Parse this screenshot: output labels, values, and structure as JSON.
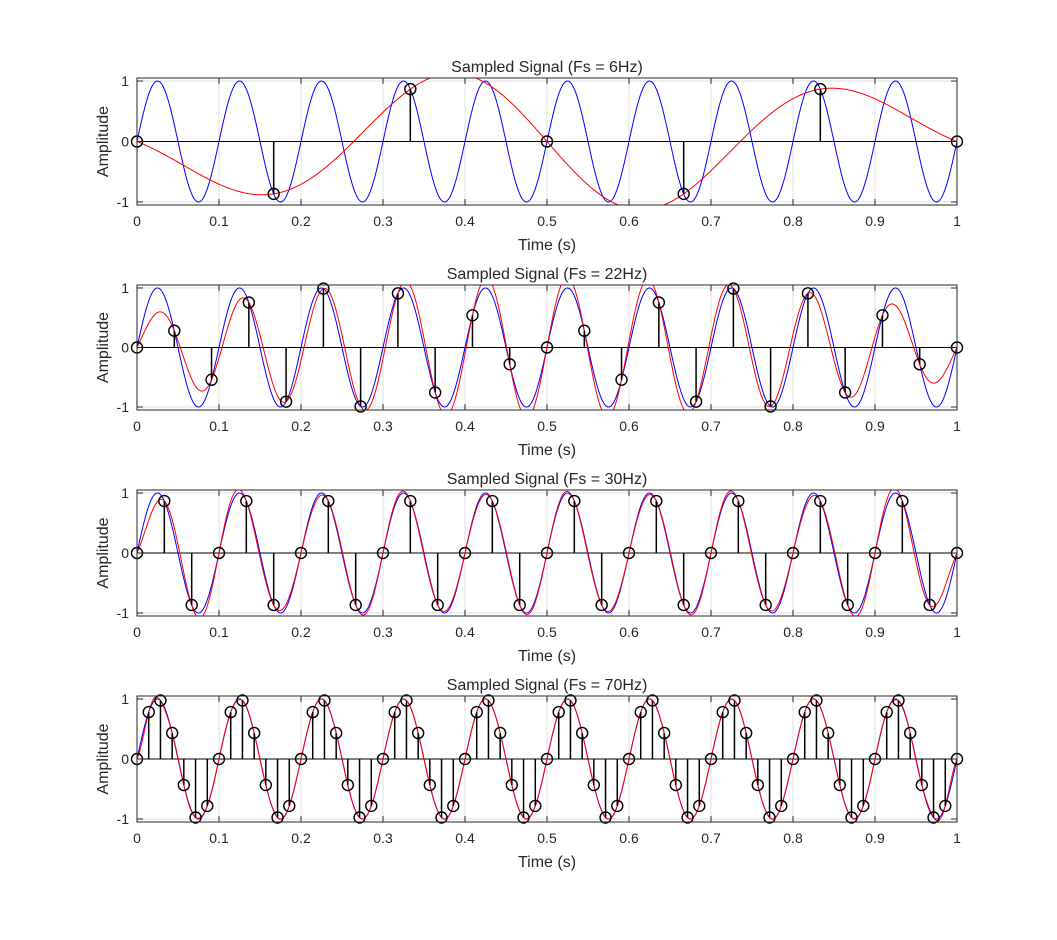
{
  "figure": {
    "colors": {
      "continuous": "#0000ff",
      "reconstructed": "#ff0000",
      "samples": "#000000",
      "grid": "#dfdfdf",
      "axes": "#262626"
    }
  },
  "chart_data": [
    {
      "type": "line",
      "title": "Sampled Signal (Fs = 6Hz)",
      "xlabel": "Time (s)",
      "ylabel": "Amplitude",
      "xlim": [
        0,
        1
      ],
      "ylim": [
        -1.05,
        1.05
      ],
      "xticks": [
        "0",
        "0.1",
        "0.2",
        "0.3",
        "0.4",
        "0.5",
        "0.6",
        "0.7",
        "0.8",
        "0.9",
        "1"
      ],
      "yticks": [
        "-1",
        "0",
        "1"
      ],
      "grid": true,
      "signal_frequency_hz": 10,
      "sampling_rate_hz": 6,
      "series": [
        {
          "kind": "continuous",
          "color": "#0000ff",
          "formula": "sin(2*pi*10*t)"
        },
        {
          "kind": "reconstructed",
          "color": "#ff0000",
          "formula": "sinc interpolation of samples"
        },
        {
          "kind": "samples",
          "color": "#000000",
          "t": [
            0,
            0.1667,
            0.3333,
            0.5,
            0.6667,
            0.8333,
            1.0
          ],
          "y": [
            0,
            -0.866,
            0.866,
            0,
            -0.866,
            0.866,
            0
          ]
        }
      ]
    },
    {
      "type": "line",
      "title": "Sampled Signal (Fs = 22Hz)",
      "xlabel": "Time (s)",
      "ylabel": "Amplitude",
      "xlim": [
        0,
        1
      ],
      "ylim": [
        -1.05,
        1.05
      ],
      "xticks": [
        "0",
        "0.1",
        "0.2",
        "0.3",
        "0.4",
        "0.5",
        "0.6",
        "0.7",
        "0.8",
        "0.9",
        "1"
      ],
      "yticks": [
        "-1",
        "0",
        "1"
      ],
      "grid": true,
      "signal_frequency_hz": 10,
      "sampling_rate_hz": 22,
      "series": [
        {
          "kind": "continuous",
          "color": "#0000ff",
          "formula": "sin(2*pi*10*t)"
        },
        {
          "kind": "reconstructed",
          "color": "#ff0000",
          "formula": "sinc interpolation of samples"
        },
        {
          "kind": "samples",
          "color": "#000000",
          "t": [
            0,
            0.0455,
            0.0909,
            0.1364,
            0.1818,
            0.2273,
            0.2727,
            0.3182,
            0.3636,
            0.4091,
            0.4545,
            0.5,
            0.5455,
            0.5909,
            0.6364,
            0.6818,
            0.7273,
            0.7727,
            0.8182,
            0.8636,
            0.9091,
            0.9545,
            1.0
          ],
          "y": [
            0,
            0.282,
            -0.541,
            0.756,
            -0.91,
            0.99,
            -0.99,
            0.91,
            -0.756,
            0.541,
            -0.282,
            0,
            0.282,
            -0.541,
            0.756,
            -0.91,
            0.99,
            -0.99,
            0.91,
            -0.756,
            0.541,
            -0.282,
            0
          ]
        }
      ]
    },
    {
      "type": "line",
      "title": "Sampled Signal (Fs = 30Hz)",
      "xlabel": "Time (s)",
      "ylabel": "Amplitude",
      "xlim": [
        0,
        1
      ],
      "ylim": [
        -1.05,
        1.05
      ],
      "xticks": [
        "0",
        "0.1",
        "0.2",
        "0.3",
        "0.4",
        "0.5",
        "0.6",
        "0.7",
        "0.8",
        "0.9",
        "1"
      ],
      "yticks": [
        "-1",
        "0",
        "1"
      ],
      "grid": true,
      "signal_frequency_hz": 10,
      "sampling_rate_hz": 30,
      "series": [
        {
          "kind": "continuous",
          "color": "#0000ff",
          "formula": "sin(2*pi*10*t)"
        },
        {
          "kind": "reconstructed",
          "color": "#ff0000",
          "formula": "sinc interpolation of samples"
        },
        {
          "kind": "samples",
          "color": "#000000",
          "t": [
            0,
            0.0333,
            0.0667,
            0.1,
            0.1333,
            0.1667,
            0.2,
            0.2333,
            0.2667,
            0.3,
            0.3333,
            0.3667,
            0.4,
            0.4333,
            0.4667,
            0.5,
            0.5333,
            0.5667,
            0.6,
            0.6333,
            0.6667,
            0.7,
            0.7333,
            0.7667,
            0.8,
            0.8333,
            0.8667,
            0.9,
            0.9333,
            0.9667,
            1.0
          ],
          "y": [
            0,
            0.866,
            -0.866,
            0,
            0.866,
            -0.866,
            0,
            0.866,
            -0.866,
            0,
            0.866,
            -0.866,
            0,
            0.866,
            -0.866,
            0,
            0.866,
            -0.866,
            0,
            0.866,
            -0.866,
            0,
            0.866,
            -0.866,
            0,
            0.866,
            -0.866,
            0,
            0.866,
            -0.866,
            0
          ]
        }
      ]
    },
    {
      "type": "line",
      "title": "Sampled Signal (Fs = 70Hz)",
      "xlabel": "Time (s)",
      "ylabel": "Amplitude",
      "xlim": [
        0,
        1
      ],
      "ylim": [
        -1.05,
        1.05
      ],
      "xticks": [
        "0",
        "0.1",
        "0.2",
        "0.3",
        "0.4",
        "0.5",
        "0.6",
        "0.7",
        "0.8",
        "0.9",
        "1"
      ],
      "yticks": [
        "-1",
        "0",
        "1"
      ],
      "grid": true,
      "signal_frequency_hz": 10,
      "sampling_rate_hz": 70,
      "series": [
        {
          "kind": "continuous",
          "color": "#0000ff",
          "formula": "sin(2*pi*10*t)"
        },
        {
          "kind": "reconstructed",
          "color": "#ff0000",
          "formula": "sinc interpolation of samples"
        },
        {
          "kind": "samples",
          "color": "#000000",
          "t": [
            0,
            0.0143,
            0.0286,
            0.0429,
            0.0571,
            0.0714,
            0.0857,
            0.1,
            0.1143,
            0.1286,
            0.1429,
            0.1571,
            0.1714,
            0.1857,
            0.2,
            0.2143,
            0.2286,
            0.2429,
            0.2571,
            0.2714,
            0.2857,
            0.3,
            0.3143,
            0.3286,
            0.3429,
            0.3571,
            0.3714,
            0.3857,
            0.4,
            0.4143,
            0.4286,
            0.4429,
            0.4571,
            0.4714,
            0.4857,
            0.5,
            0.5143,
            0.5286,
            0.5429,
            0.5571,
            0.5714,
            0.5857,
            0.6,
            0.6143,
            0.6286,
            0.6429,
            0.6571,
            0.6714,
            0.6857,
            0.7,
            0.7143,
            0.7286,
            0.7429,
            0.7571,
            0.7714,
            0.7857,
            0.8,
            0.8143,
            0.8286,
            0.8429,
            0.8571,
            0.8714,
            0.8857,
            0.9,
            0.9143,
            0.9286,
            0.9429,
            0.9571,
            0.9714,
            0.9857,
            1.0
          ],
          "y": [
            0,
            0.782,
            0.975,
            0.434,
            -0.434,
            -0.975,
            -0.782,
            0,
            0.782,
            0.975,
            0.434,
            -0.434,
            -0.975,
            -0.782,
            0,
            0.782,
            0.975,
            0.434,
            -0.434,
            -0.975,
            -0.782,
            0,
            0.782,
            0.975,
            0.434,
            -0.434,
            -0.975,
            -0.782,
            0,
            0.782,
            0.975,
            0.434,
            -0.434,
            -0.975,
            -0.782,
            0,
            0.782,
            0.975,
            0.434,
            -0.434,
            -0.975,
            -0.782,
            0,
            0.782,
            0.975,
            0.434,
            -0.434,
            -0.975,
            -0.782,
            0,
            0.782,
            0.975,
            0.434,
            -0.434,
            -0.975,
            -0.782,
            0,
            0.782,
            0.975,
            0.434,
            -0.434,
            -0.975,
            -0.782,
            0,
            0.782,
            0.975,
            0.434,
            -0.434,
            -0.975,
            -0.782,
            0
          ]
        }
      ]
    }
  ]
}
